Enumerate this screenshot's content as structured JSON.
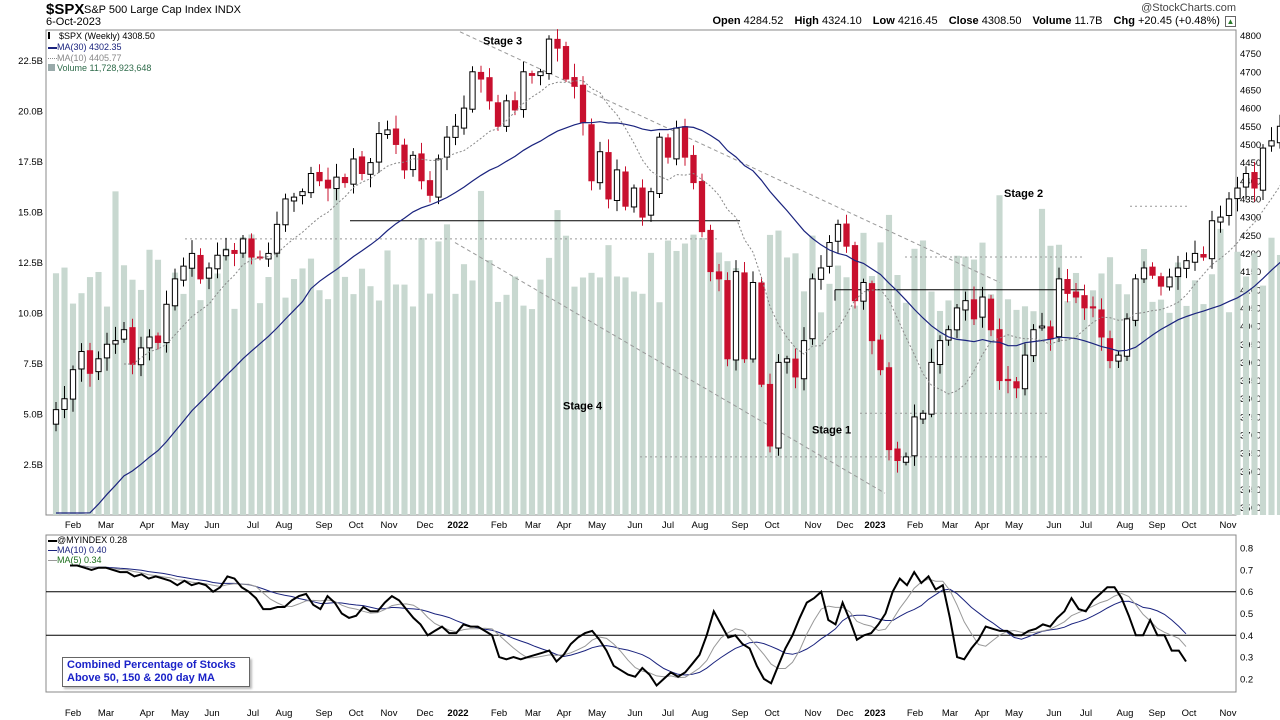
{
  "header": {
    "symbol": "$SPX",
    "name": "S&P 500 Large Cap Index",
    "exchange": "INDX",
    "date": "6-Oct-2023",
    "copyright": "@StockCharts.com",
    "open_label": "Open",
    "open": "4284.52",
    "high_label": "High",
    "high": "4324.10",
    "low_label": "Low",
    "low": "4216.45",
    "close_label": "Close",
    "close": "4308.50",
    "volume_label": "Volume",
    "volume": "11.7B",
    "chg_label": "Chg",
    "chg": "+20.45 (+0.48%)",
    "chg_icon": "up-arrow-icon"
  },
  "legend": {
    "price": "$SPX (Weekly) 4308.50",
    "ma30": "MA(30) 4302.35",
    "ma10": "MA(10) 4405.77",
    "volume": "Volume 11,728,923,648"
  },
  "lower_legend": {
    "index": "@MYINDEX 0.28",
    "ma10": "MA(10) 0.40",
    "ma5": "MA(5) 0.34"
  },
  "note": {
    "line1": "Combined Percentage of Stocks",
    "line2": "Above 50, 150 & 200 day MA"
  },
  "colors": {
    "up": "#ffffff",
    "down": "#c8102e",
    "ma30": "#1a237e",
    "ma10": "#888888",
    "volume": "#c8d8d0",
    "indicator": "#000000",
    "ind_ma10": "#1a237e",
    "ind_ma5": "#999999",
    "trendline": "#999999"
  },
  "chart_data": [
    {
      "type": "candlestick",
      "title": "$SPX S&P 500 Large Cap Index",
      "period": "weekly",
      "x_tick_labels": [
        "Feb",
        "Mar",
        "Apr",
        "May",
        "Jun",
        "Jul",
        "Aug",
        "Sep",
        "Oct",
        "Nov",
        "Dec",
        "2022",
        "Feb",
        "Mar",
        "Apr",
        "May",
        "Jun",
        "Jul",
        "Aug",
        "Sep",
        "Oct",
        "Nov",
        "Dec",
        "2023",
        "Feb",
        "Mar",
        "Apr",
        "May",
        "Jun",
        "Jul",
        "Aug",
        "Sep",
        "Oct",
        "Nov"
      ],
      "y_ticks": [
        3500,
        3550,
        3600,
        3650,
        3700,
        3750,
        3800,
        3850,
        3900,
        3950,
        4000,
        4050,
        4100,
        4150,
        4200,
        4250,
        4300,
        4350,
        4400,
        4450,
        4500,
        4550,
        4600,
        4650,
        4700,
        4750,
        4800
      ],
      "ylim": [
        3480,
        4815
      ],
      "volume_ticks": [
        "2.5B",
        "5.0B",
        "7.5B",
        "10.0B",
        "12.5B",
        "15.0B",
        "17.5B",
        "20.0B",
        "22.5B"
      ],
      "volume_lim": [
        0,
        24
      ],
      "annotations": [
        "Stage 3",
        "Stage 4",
        "Stage 1",
        "Stage 2"
      ],
      "close": [
        3770,
        3800,
        3880,
        3930,
        3870,
        3910,
        3950,
        3960,
        3990,
        3895,
        3940,
        3970,
        3955,
        4060,
        4130,
        4165,
        4200,
        4130,
        4160,
        4195,
        4210,
        4200,
        4240,
        4190,
        4190,
        4200,
        4280,
        4350,
        4355,
        4370,
        4420,
        4400,
        4380,
        4410,
        4395,
        4460,
        4420,
        4450,
        4530,
        4540,
        4500,
        4430,
        4470,
        4400,
        4360,
        4460,
        4520,
        4550,
        4600,
        4700,
        4680,
        4620,
        4550,
        4620,
        4595,
        4700,
        4690,
        4700,
        4790,
        4765,
        4680,
        4660,
        4560,
        4400,
        4480,
        4350,
        4430,
        4330,
        4380,
        4300,
        4370,
        4520,
        4465,
        4545,
        4465,
        4395,
        4260,
        4150,
        4130,
        3910,
        4150,
        3910,
        4120,
        3840,
        3670,
        3900,
        3910,
        3860,
        3960,
        4130,
        4160,
        4230,
        4280,
        4220,
        4070,
        4120,
        3960,
        3880,
        3660,
        3630,
        3640,
        3750,
        3760,
        3900,
        3960,
        3990,
        4050,
        4070,
        4020,
        4080,
        3990,
        3850,
        3850,
        3830,
        3920,
        3990,
        4000,
        3965,
        4130,
        4090,
        4080,
        4050,
        4050,
        3970,
        3905,
        3920,
        4020,
        4130,
        4160,
        4140,
        4110,
        4135,
        4160,
        4180,
        4200,
        4190,
        4290,
        4300,
        4350,
        4380,
        4420,
        4380,
        4490,
        4510,
        4550,
        4580,
        4520,
        4500,
        4470,
        4460,
        4500,
        4450,
        4400,
        4300,
        4290,
        4310
      ]
    },
    {
      "type": "line",
      "title": "Combined Percentage of Stocks Above 50, 150 & 200 day MA",
      "series": [
        {
          "name": "@MYINDEX",
          "values": [
            0.72,
            0.72,
            0.71,
            0.7,
            0.71,
            0.71,
            0.7,
            0.69,
            0.69,
            0.67,
            0.68,
            0.66,
            0.67,
            0.66,
            0.65,
            0.63,
            0.65,
            0.63,
            0.64,
            0.63,
            0.6,
            0.62,
            0.67,
            0.66,
            0.62,
            0.6,
            0.57,
            0.52,
            0.52,
            0.53,
            0.53,
            0.56,
            0.58,
            0.59,
            0.54,
            0.52,
            0.58,
            0.55,
            0.5,
            0.48,
            0.49,
            0.53,
            0.51,
            0.51,
            0.55,
            0.58,
            0.56,
            0.52,
            0.48,
            0.45,
            0.4,
            0.42,
            0.44,
            0.41,
            0.41,
            0.45,
            0.44,
            0.44,
            0.42,
            0.4,
            0.3,
            0.29,
            0.3,
            0.29,
            0.3,
            0.31,
            0.32,
            0.33,
            0.28,
            0.31,
            0.36,
            0.39,
            0.41,
            0.42,
            0.38,
            0.33,
            0.26,
            0.24,
            0.22,
            0.21,
            0.25,
            0.22,
            0.17,
            0.2,
            0.23,
            0.21,
            0.23,
            0.27,
            0.31,
            0.4,
            0.51,
            0.45,
            0.39,
            0.4,
            0.36,
            0.34,
            0.26,
            0.2,
            0.18,
            0.26,
            0.34,
            0.4,
            0.48,
            0.55,
            0.57,
            0.6,
            0.47,
            0.45,
            0.55,
            0.47,
            0.38,
            0.4,
            0.41,
            0.45,
            0.5,
            0.6,
            0.66,
            0.63,
            0.69,
            0.64,
            0.67,
            0.61,
            0.63,
            0.48,
            0.3,
            0.29,
            0.34,
            0.38,
            0.44,
            0.43,
            0.42,
            0.42,
            0.4,
            0.4,
            0.42,
            0.43,
            0.45,
            0.44,
            0.48,
            0.51,
            0.57,
            0.52,
            0.51,
            0.56,
            0.59,
            0.62,
            0.62,
            0.57,
            0.49,
            0.4,
            0.4,
            0.47,
            0.4,
            0.4,
            0.33,
            0.33,
            0.28
          ]
        }
      ],
      "indicator_ma10_label": "MA(10) 0.40",
      "indicator_ma5_label": "MA(5) 0.34",
      "y_ticks": [
        0.2,
        0.3,
        0.4,
        0.5,
        0.6,
        0.7,
        0.8
      ],
      "ylim": [
        0.14,
        0.86
      ],
      "hlines": [
        0.4,
        0.6
      ],
      "x_tick_labels": [
        "Feb",
        "Mar",
        "Apr",
        "May",
        "Jun",
        "Jul",
        "Aug",
        "Sep",
        "Oct",
        "Nov",
        "Dec",
        "2022",
        "Feb",
        "Mar",
        "Apr",
        "May",
        "Jun",
        "Jul",
        "Aug",
        "Sep",
        "Oct",
        "Nov",
        "Dec",
        "2023",
        "Feb",
        "Mar",
        "Apr",
        "May",
        "Jun",
        "Jul",
        "Aug",
        "Sep",
        "Oct",
        "Nov"
      ]
    }
  ]
}
